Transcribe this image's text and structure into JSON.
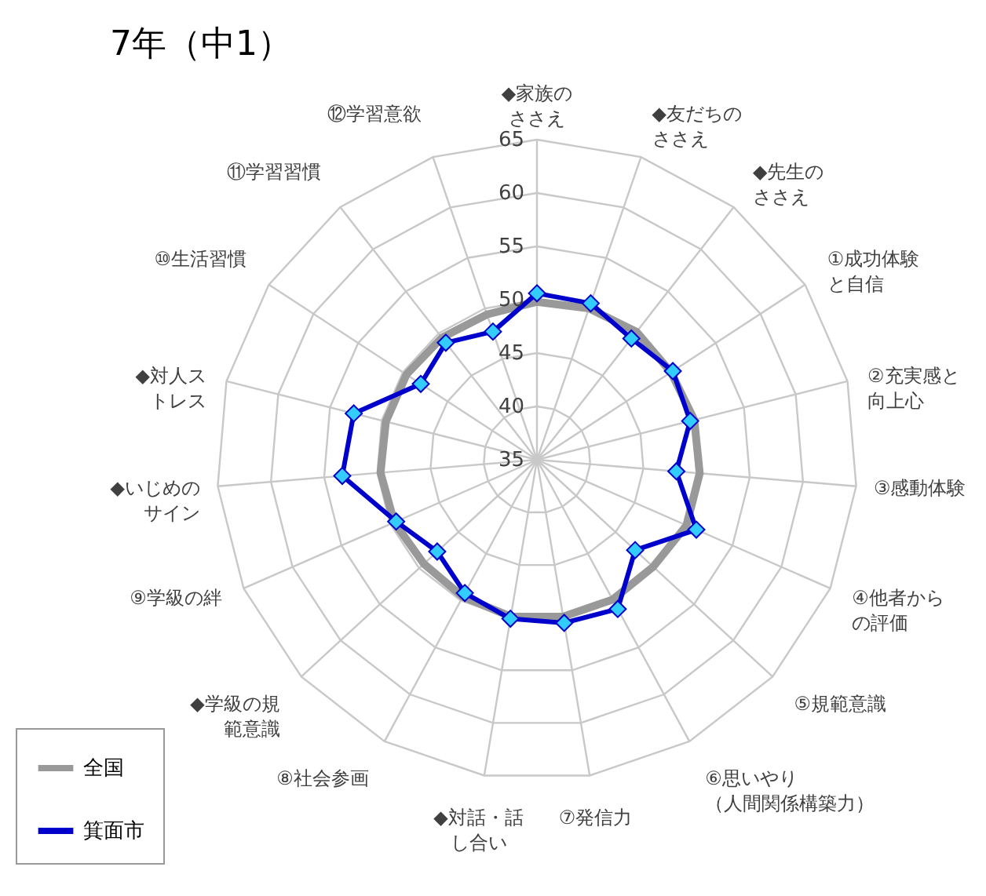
{
  "chart_data": {
    "type": "radar",
    "title": "7年（中1）",
    "categories": [
      "◆家族のささえ",
      "◆友だちのささえ",
      "◆先生のささえ",
      "①成功体験と自信",
      "②充実感と向上心",
      "③感動体験",
      "④他者からの評価",
      "⑤規範意識",
      "⑥思いやり（人間関係構築力）",
      "⑦発信力",
      "◆対話・話し合い",
      "⑧社会参画",
      "◆学級の規範意識",
      "⑨学級の絆",
      "◆いじめのサイン",
      "◆対人ストレス",
      "⑩生活習慣",
      "⑪学習習慣",
      "⑫学習意欲"
    ],
    "series": [
      {
        "name": "全国",
        "color": "#999999",
        "marker": "none",
        "values": [
          49.8,
          50.0,
          50.2,
          50.0,
          50.2,
          50.3,
          50.3,
          49.8,
          49.9,
          49.9,
          49.9,
          49.6,
          49.4,
          49.6,
          49.7,
          49.6,
          49.6,
          49.5,
          49.4
        ]
      },
      {
        "name": "箕面市",
        "color": "#0000cc",
        "marker": "diamond",
        "values": [
          50.6,
          50.5,
          49.4,
          50.2,
          49.8,
          48.1,
          51.3,
          47.5,
          50.9,
          50.5,
          50.1,
          49.2,
          47.7,
          49.4,
          53.3,
          52.7,
          48.0,
          48.9,
          47.7
        ]
      }
    ],
    "ylim": [
      35,
      65
    ],
    "yticks": [
      35,
      40,
      45,
      50,
      55,
      60,
      65
    ],
    "grid": true,
    "legend": "bottom left"
  }
}
